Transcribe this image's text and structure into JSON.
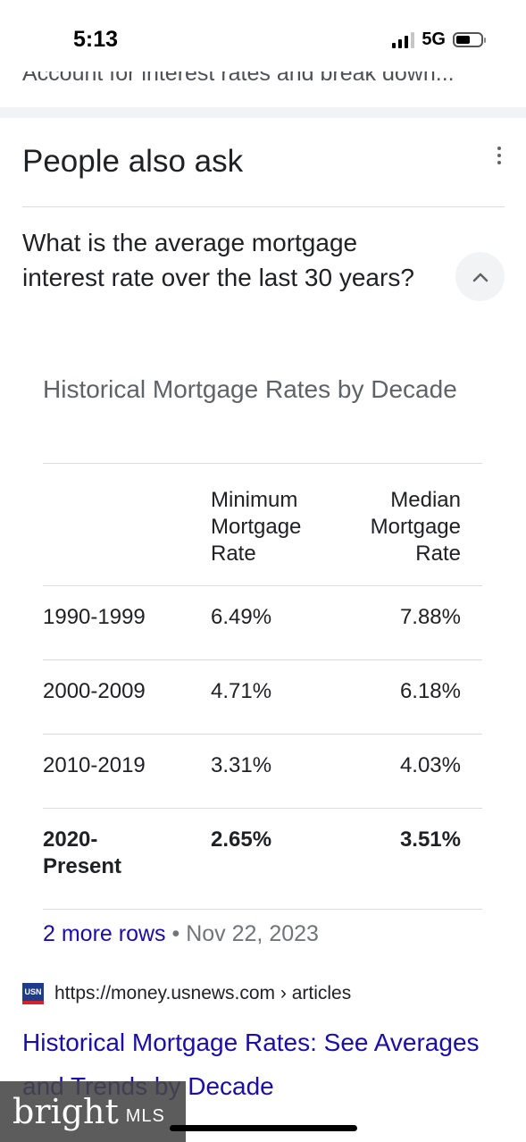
{
  "status_bar": {
    "time": "5:13",
    "network": "5G"
  },
  "previous_result": {
    "snippet": "Account for interest rates and break down..."
  },
  "people_also_ask": {
    "title": "People also ask",
    "question": "What is the average mortgage interest rate over the last 30 years?",
    "answer": {
      "table_title": "Historical Mortgage Rates by Decade",
      "columns": [
        "",
        "Minimum Mortgage Rate",
        "Median Mortgage Rate"
      ],
      "rows": [
        {
          "decade": "1990-1999",
          "minimum": "6.49%",
          "median": "7.88%"
        },
        {
          "decade": "2000-2009",
          "minimum": "4.71%",
          "median": "6.18%"
        },
        {
          "decade": "2010-2019",
          "minimum": "3.31%",
          "median": "4.03%"
        },
        {
          "decade": "2020-Present",
          "minimum": "2.65%",
          "median": "3.51%"
        }
      ],
      "more_rows": "2 more rows",
      "separator": "•",
      "date": "Nov 22, 2023"
    },
    "source": {
      "favicon_text": "USN",
      "url": "https://money.usnews.com › articles",
      "title": "Historical Mortgage Rates: See Averages and Trends by Decade"
    }
  },
  "watermark": {
    "brand": "bright",
    "suffix": "MLS"
  },
  "icons": {
    "more": "more-vert-icon",
    "collapse": "chevron-up-icon"
  },
  "colors": {
    "link": "#1a0dab",
    "text": "#202124",
    "muted": "#5f6368",
    "divider": "#dadce0"
  }
}
